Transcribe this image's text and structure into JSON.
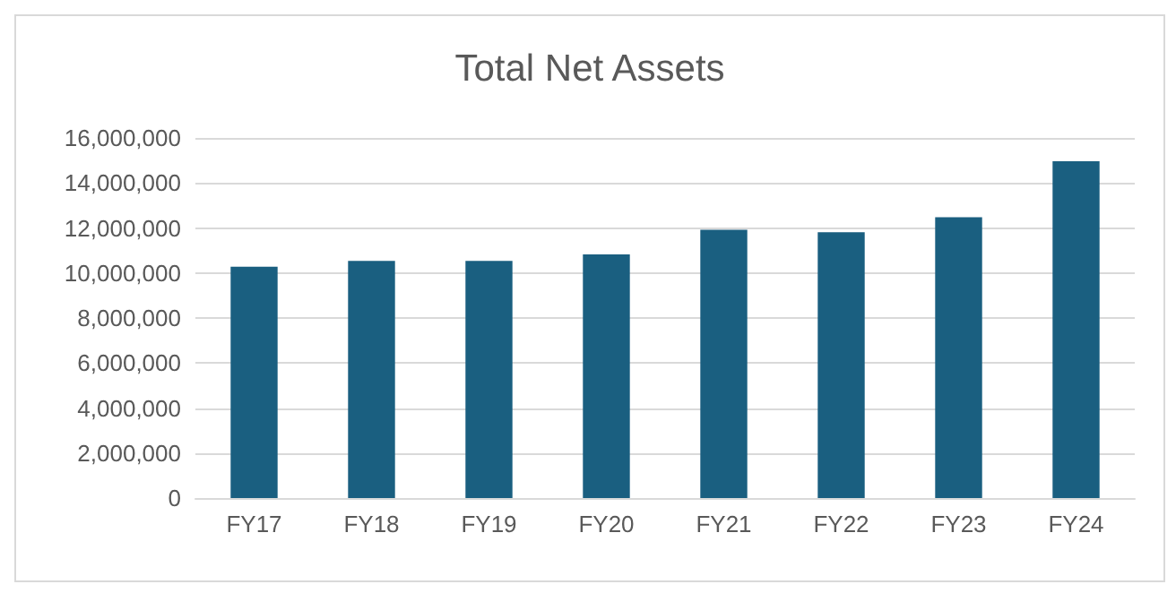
{
  "chart_data": {
    "type": "bar",
    "title": "Total Net Assets",
    "categories": [
      "FY17",
      "FY18",
      "FY19",
      "FY20",
      "FY21",
      "FY22",
      "FY23",
      "FY24"
    ],
    "values": [
      10280000,
      10540000,
      10540000,
      10830000,
      11920000,
      11810000,
      12480000,
      14970000
    ],
    "color": "#1a5f80",
    "ylim": [
      0,
      16000000
    ],
    "yticks": [
      0,
      {
        "value": 2000000,
        "label": "2,000,000"
      },
      {
        "value": 4000000,
        "label": "4,000,000"
      },
      {
        "value": 6000000,
        "label": "6,000,000"
      },
      {
        "value": 8000000,
        "label": "8,000,000"
      },
      {
        "value": 10000000,
        "label": "10,000,000"
      },
      {
        "value": 12000000,
        "label": "12,000,000"
      },
      {
        "value": 14000000,
        "label": "14,000,000"
      },
      {
        "value": 16000000,
        "label": "16,000,000"
      }
    ],
    "grid": "y"
  }
}
